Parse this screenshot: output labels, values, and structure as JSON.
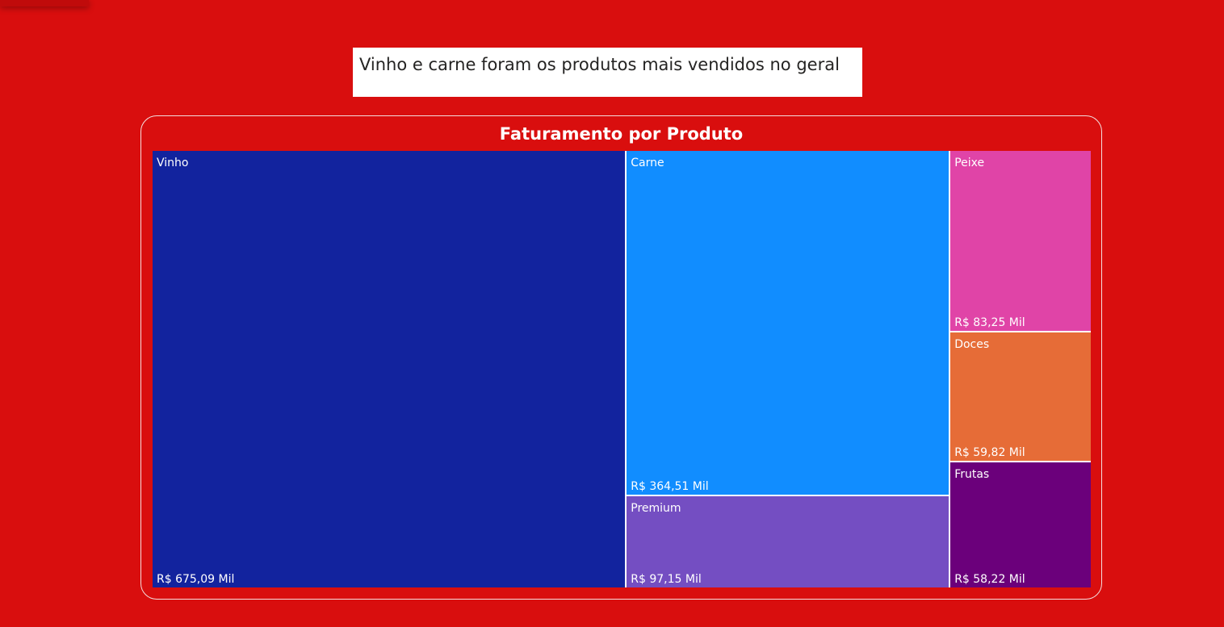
{
  "headline": "Vinho e carne foram os produtos mais vendidos no geral",
  "chart_data": {
    "type": "treemap",
    "title": "Faturamento por Produto",
    "items": [
      {
        "name": "Vinho",
        "value": 675.09,
        "label": "R$ 675,09 Mil",
        "color": "#12239e"
      },
      {
        "name": "Carne",
        "value": 364.51,
        "label": "R$ 364,51 Mil",
        "color": "#118dff"
      },
      {
        "name": "Premium",
        "value": 97.15,
        "label": "R$ 97,15 Mil",
        "color": "#744ec2"
      },
      {
        "name": "Peixe",
        "value": 83.25,
        "label": "R$ 83,25 Mil",
        "color": "#e044a7"
      },
      {
        "name": "Doces",
        "value": 59.82,
        "label": "R$ 59,82 Mil",
        "color": "#e66c37"
      },
      {
        "name": "Frutas",
        "value": 58.22,
        "label": "R$ 58,22 Mil",
        "color": "#6b007b"
      }
    ]
  }
}
